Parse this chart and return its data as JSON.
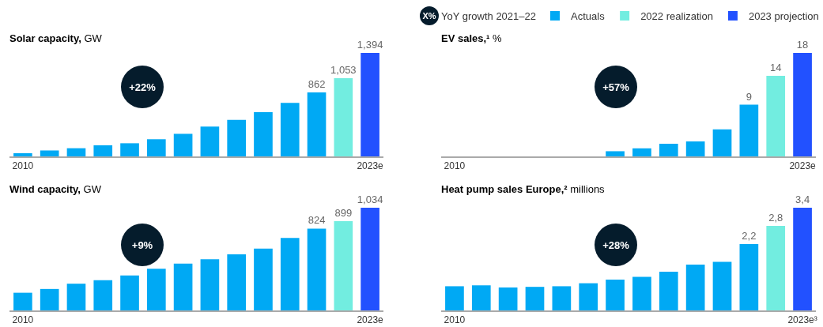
{
  "chart_data": [
    {
      "type": "bar",
      "title": "Solar capacity, GW",
      "categories": [
        "2010",
        null,
        null,
        null,
        null,
        null,
        null,
        null,
        null,
        null,
        null,
        null,
        null,
        "2023e"
      ],
      "values": [
        43,
        80,
        110,
        150,
        177,
        231,
        304,
        401,
        491,
        595,
        722,
        862,
        1053,
        1394
      ],
      "value_labels": [
        null,
        null,
        null,
        null,
        null,
        null,
        null,
        null,
        null,
        null,
        null,
        "862",
        "1,053",
        "1,394"
      ],
      "colors": [
        "#00a9f4",
        "#00a9f4",
        "#00a9f4",
        "#00a9f4",
        "#00a9f4",
        "#00a9f4",
        "#00a9f4",
        "#00a9f4",
        "#00a9f4",
        "#00a9f4",
        "#00a9f4",
        "#00a9f4",
        "#72ede0",
        "#2251ff"
      ],
      "annotations": [
        "+22%"
      ],
      "tick_labels": "x"
    },
    {
      "type": "bar",
      "title": "EV sales,¹ %",
      "categories": [
        "2010",
        null,
        null,
        null,
        null,
        null,
        null,
        null,
        null,
        null,
        null,
        null,
        null,
        "2023e"
      ],
      "series": [
        {
          "name": "Actuals",
          "color": "#00a9f4",
          "values": [
            null,
            null,
            null,
            null,
            null,
            null,
            0.9,
            1.4,
            2.2,
            2.6,
            4.7,
            9,
            null,
            null
          ],
          "value_labels": [
            null,
            null,
            null,
            null,
            null,
            null,
            null,
            null,
            null,
            null,
            null,
            "9",
            null,
            null
          ]
        },
        {
          "name": "2022 realization",
          "color": "#72ede0",
          "values": [
            null,
            null,
            null,
            null,
            null,
            null,
            null,
            null,
            null,
            null,
            null,
            null,
            14,
            null
          ],
          "value_labels": [
            null,
            null,
            null,
            null,
            null,
            null,
            null,
            null,
            null,
            null,
            null,
            null,
            "14",
            null
          ]
        },
        {
          "name": "2023 projection",
          "color": "#2251ff",
          "values": [
            null,
            null,
            null,
            null,
            null,
            null,
            null,
            null,
            null,
            null,
            null,
            null,
            null,
            18
          ],
          "value_labels": [
            null,
            null,
            null,
            null,
            null,
            null,
            null,
            null,
            null,
            null,
            null,
            null,
            null,
            "18"
          ]
        }
      ],
      "annotations": [
        "+57%",
        "X%",
        "YoY growth 2021–22"
      ],
      "legend": "top right",
      "tick_labels": "x"
    },
    {
      "type": "bar",
      "title": "Wind capacity, GW",
      "categories": [
        "2010",
        null,
        null,
        null,
        null,
        null,
        null,
        null,
        null,
        null,
        null,
        null,
        null,
        "2023e"
      ],
      "values": [
        178,
        216,
        269,
        304,
        351,
        419,
        472,
        515,
        565,
        622,
        730,
        824,
        899,
        1034
      ],
      "value_labels": [
        null,
        null,
        null,
        null,
        null,
        null,
        null,
        null,
        null,
        null,
        null,
        "824",
        "899",
        "1,034"
      ],
      "colors": [
        "#00a9f4",
        "#00a9f4",
        "#00a9f4",
        "#00a9f4",
        "#00a9f4",
        "#00a9f4",
        "#00a9f4",
        "#00a9f4",
        "#00a9f4",
        "#00a9f4",
        "#00a9f4",
        "#00a9f4",
        "#72ede0",
        "#2251ff"
      ],
      "annotations": [
        "+9%"
      ],
      "tick_labels": "x"
    },
    {
      "type": "bar",
      "title": "Heat pump sales Europe,² millions",
      "categories": [
        "2010",
        null,
        null,
        null,
        null,
        null,
        null,
        null,
        null,
        null,
        null,
        null,
        null,
        "2023e³"
      ],
      "values": [
        0.8,
        0.83,
        0.76,
        0.78,
        0.8,
        0.9,
        1.02,
        1.11,
        1.28,
        1.52,
        1.61,
        2.2,
        2.8,
        3.4
      ],
      "value_labels": [
        null,
        null,
        null,
        null,
        null,
        null,
        null,
        null,
        null,
        null,
        null,
        "2,2",
        "2,8",
        "3,4"
      ],
      "colors": [
        "#00a9f4",
        "#00a9f4",
        "#00a9f4",
        "#00a9f4",
        "#00a9f4",
        "#00a9f4",
        "#00a9f4",
        "#00a9f4",
        "#00a9f4",
        "#00a9f4",
        "#00a9f4",
        "#00a9f4",
        "#72ede0",
        "#2251ff"
      ],
      "annotations": [
        "+28%"
      ],
      "tick_labels": "x"
    }
  ]
}
